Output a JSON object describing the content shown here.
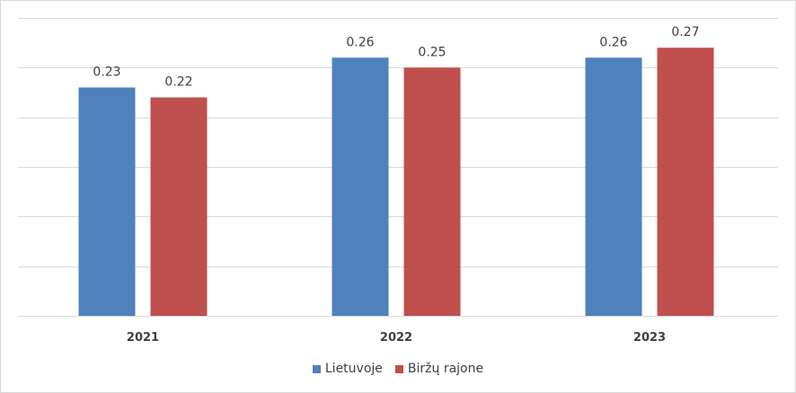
{
  "chart_data": {
    "type": "bar",
    "categories": [
      "2021",
      "2022",
      "2023"
    ],
    "series": [
      {
        "name": "Lietuvoje",
        "values": [
          0.23,
          0.26,
          0.26
        ],
        "labels": [
          "0.23",
          "0.26",
          "0.26"
        ],
        "color": "#4f81bd"
      },
      {
        "name": "Biržų rajone",
        "values": [
          0.22,
          0.25,
          0.27
        ],
        "labels": [
          "0.22",
          "0.25",
          "0.27"
        ],
        "color": "#c0504d"
      }
    ],
    "title": "",
    "xlabel": "",
    "ylabel": "",
    "ylim": [
      0,
      0.3
    ],
    "grid": true,
    "gridline_color": "#d9d9d9",
    "legend": "bottom"
  }
}
